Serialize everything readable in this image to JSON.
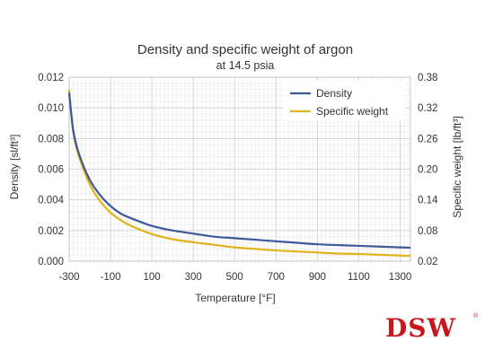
{
  "chart_data": {
    "type": "line",
    "title": "Density and specific weight of argon",
    "subtitle": "at 14.5 psia",
    "xlabel": "Temperature [°F]",
    "ylabel": "Density [sl/ft³]",
    "y2label": "Specific weight [lb/ft³]",
    "xlim": [
      -300,
      1350
    ],
    "ylim": [
      0,
      0.012
    ],
    "y2lim": [
      0.02,
      0.38
    ],
    "x_ticks": [
      "-300",
      "-100",
      "100",
      "300",
      "500",
      "700",
      "900",
      "1100",
      "1300"
    ],
    "y_ticks": [
      "0.000",
      "0.002",
      "0.004",
      "0.006",
      "0.008",
      "0.010",
      "0.012"
    ],
    "y2_ticks": [
      "0.02",
      "0.08",
      "0.14",
      "0.20",
      "0.26",
      "0.32",
      "0.38"
    ],
    "grid": true,
    "legend": "top-right",
    "series": [
      {
        "name": "Density",
        "axis": "left",
        "color": "#3a5a9a",
        "x": [
          -300,
          -280,
          -250,
          -200,
          -150,
          -100,
          -50,
          0,
          100,
          200,
          300,
          400,
          500,
          600,
          700,
          800,
          900,
          1000,
          1100,
          1200,
          1300,
          1350
        ],
        "y": [
          0.011,
          0.0085,
          0.0069,
          0.0053,
          0.0043,
          0.0036,
          0.0031,
          0.0028,
          0.0023,
          0.002,
          0.0018,
          0.0016,
          0.0015,
          0.0014,
          0.0013,
          0.0012,
          0.0011,
          0.00105,
          0.001,
          0.00095,
          0.0009,
          0.00088
        ]
      },
      {
        "name": "Specific weight",
        "axis": "right",
        "color": "#e0b31a",
        "x": [
          -300,
          -280,
          -250,
          -200,
          -150,
          -100,
          -50,
          0,
          100,
          200,
          300,
          400,
          500,
          600,
          700,
          800,
          900,
          1000,
          1100,
          1200,
          1300,
          1350
        ],
        "y": [
          0.355,
          0.272,
          0.222,
          0.17,
          0.137,
          0.115,
          0.1,
          0.089,
          0.073,
          0.063,
          0.057,
          0.052,
          0.047,
          0.044,
          0.041,
          0.039,
          0.037,
          0.035,
          0.034,
          0.0325,
          0.031,
          0.0305
        ]
      }
    ]
  },
  "watermark": {
    "text": "DSW",
    "mark": "®",
    "color": "#c8161d"
  }
}
